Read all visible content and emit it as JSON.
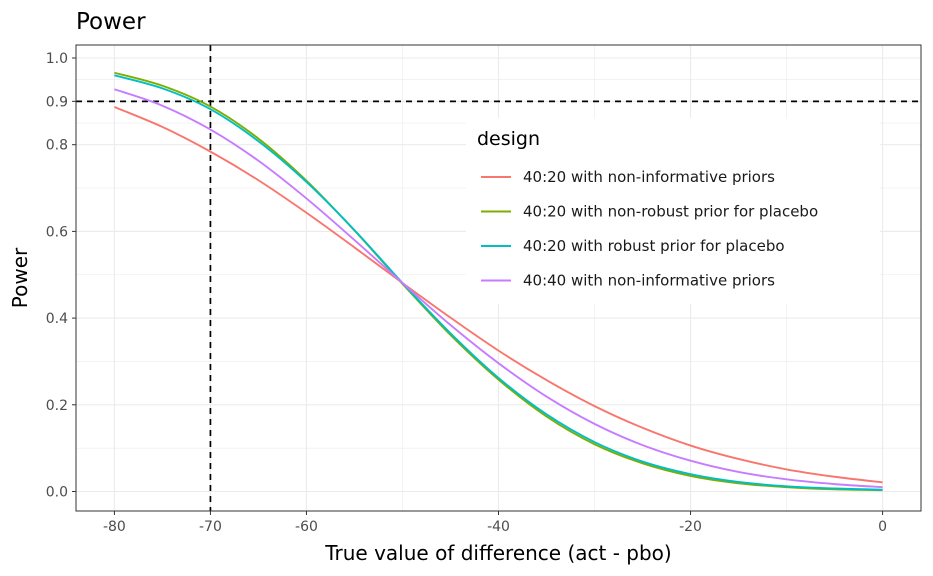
{
  "chart_data": {
    "type": "line",
    "title": "Power",
    "xlabel": "True value of difference (act - pbo)",
    "ylabel": "Power",
    "xlim": [
      -84,
      4
    ],
    "ylim": [
      -0.045,
      1.03
    ],
    "x_ticks": [
      -80,
      -70,
      -60,
      -40,
      -20,
      0
    ],
    "x_tick_labels": [
      "-80",
      "-70",
      "-60",
      "-40",
      "-20",
      "0"
    ],
    "y_ticks": [
      0.0,
      0.2,
      0.4,
      0.6,
      0.8,
      0.9,
      1.0
    ],
    "y_tick_labels": [
      "0.0",
      "0.2",
      "0.4",
      "0.6",
      "0.8",
      "0.9",
      "1.0"
    ],
    "grid": true,
    "legend": {
      "title": "design",
      "placement": "inside-top-right"
    },
    "reference_lines": [
      {
        "orientation": "vertical",
        "value": -70,
        "style": "dashed",
        "color": "#000000"
      },
      {
        "orientation": "horizontal",
        "value": 0.9,
        "style": "dashed",
        "color": "#000000"
      }
    ],
    "x": [
      -80,
      -75,
      -70,
      -65,
      -60,
      -55,
      -50,
      -45,
      -40,
      -35,
      -30,
      -25,
      -20,
      -15,
      -10,
      -5,
      0
    ],
    "series": [
      {
        "name": "40:20 with non-informative priors",
        "color": "#F8766D",
        "values": [
          0.887,
          0.841,
          0.784,
          0.718,
          0.643,
          0.563,
          0.481,
          0.401,
          0.325,
          0.257,
          0.197,
          0.147,
          0.106,
          0.075,
          0.051,
          0.034,
          0.021
        ]
      },
      {
        "name": "40:20 with non-robust prior for placebo",
        "color": "#7CAE00",
        "values": [
          0.966,
          0.936,
          0.888,
          0.814,
          0.717,
          0.602,
          0.479,
          0.361,
          0.258,
          0.173,
          0.109,
          0.065,
          0.036,
          0.019,
          0.01,
          0.005,
          0.003
        ]
      },
      {
        "name": "40:20 with robust prior for placebo",
        "color": "#00BFC4",
        "values": [
          0.96,
          0.93,
          0.882,
          0.808,
          0.714,
          0.603,
          0.481,
          0.365,
          0.262,
          0.178,
          0.114,
          0.069,
          0.04,
          0.022,
          0.012,
          0.007,
          0.004
        ]
      },
      {
        "name": "40:40 with non-informative priors",
        "color": "#C77CFF",
        "values": [
          0.928,
          0.89,
          0.835,
          0.763,
          0.676,
          0.58,
          0.481,
          0.384,
          0.296,
          0.219,
          0.156,
          0.107,
          0.071,
          0.045,
          0.028,
          0.017,
          0.01
        ]
      }
    ]
  }
}
